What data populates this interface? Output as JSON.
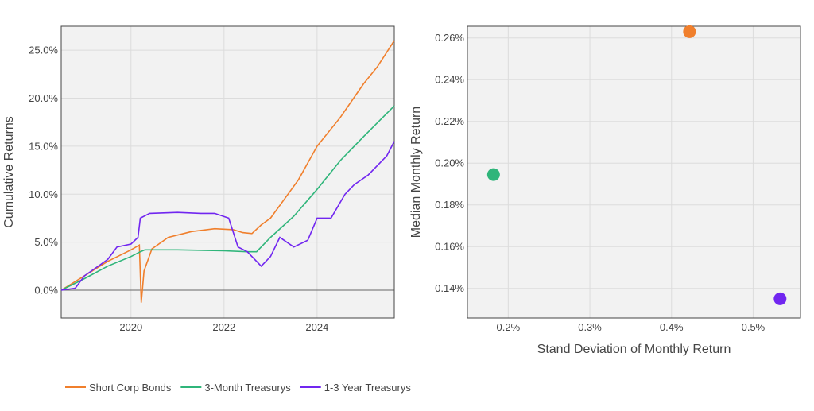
{
  "colors": {
    "short_corp": "#f07f2c",
    "three_month": "#2fb57a",
    "one_three_year": "#7126f0",
    "plot_bg": "#f2f2f2",
    "grid": "#dcdcdc"
  },
  "chart_data": [
    {
      "type": "line",
      "title": "",
      "xlabel": "",
      "ylabel": "Cumulative Returns",
      "xlim": [
        2018.5,
        2025.66
      ],
      "ylim": [
        -2.9,
        27.5
      ],
      "x_ticks": [
        {
          "v": 2020,
          "label": "2020"
        },
        {
          "v": 2022,
          "label": "2022"
        },
        {
          "v": 2024,
          "label": "2024"
        }
      ],
      "y_ticks": [
        {
          "v": 0,
          "label": "0.0%"
        },
        {
          "v": 5,
          "label": "5.0%"
        },
        {
          "v": 10,
          "label": "10.0%"
        },
        {
          "v": 15,
          "label": "15.0%"
        },
        {
          "v": 20,
          "label": "20.0%"
        },
        {
          "v": 25,
          "label": "25.0%"
        }
      ],
      "series": [
        {
          "name": "Short Corp Bonds",
          "color": "#f07f2c",
          "points": [
            [
              2018.5,
              0
            ],
            [
              2019,
              1.5
            ],
            [
              2019.5,
              3
            ],
            [
              2020.0,
              4.2
            ],
            [
              2020.18,
              4.7
            ],
            [
              2020.22,
              -1.3
            ],
            [
              2020.28,
              2
            ],
            [
              2020.45,
              4.3
            ],
            [
              2020.8,
              5.5
            ],
            [
              2021.3,
              6.1
            ],
            [
              2021.8,
              6.4
            ],
            [
              2022.2,
              6.3
            ],
            [
              2022.4,
              6.0
            ],
            [
              2022.6,
              5.9
            ],
            [
              2022.8,
              6.8
            ],
            [
              2023.0,
              7.5
            ],
            [
              2023.3,
              9.5
            ],
            [
              2023.6,
              11.5
            ],
            [
              2024.0,
              15
            ],
            [
              2024.5,
              18
            ],
            [
              2025.0,
              21.5
            ],
            [
              2025.3,
              23.3
            ],
            [
              2025.66,
              26
            ]
          ]
        },
        {
          "name": "3-Month Treasurys",
          "color": "#2fb57a",
          "points": [
            [
              2018.5,
              0
            ],
            [
              2019,
              1.2
            ],
            [
              2019.5,
              2.5
            ],
            [
              2020.0,
              3.5
            ],
            [
              2020.2,
              4.0
            ],
            [
              2020.3,
              4.2
            ],
            [
              2021,
              4.2
            ],
            [
              2022,
              4.1
            ],
            [
              2022.5,
              4.0
            ],
            [
              2022.7,
              4.0
            ],
            [
              2023.0,
              5.5
            ],
            [
              2023.5,
              7.7
            ],
            [
              2024,
              10.5
            ],
            [
              2024.5,
              13.5
            ],
            [
              2025,
              16
            ],
            [
              2025.66,
              19.2
            ]
          ]
        },
        {
          "name": "1-3 Year Treasurys",
          "color": "#7126f0",
          "points": [
            [
              2018.5,
              0
            ],
            [
              2018.8,
              0.2
            ],
            [
              2019,
              1.5
            ],
            [
              2019.5,
              3.2
            ],
            [
              2019.7,
              4.5
            ],
            [
              2020.0,
              4.8
            ],
            [
              2020.15,
              5.5
            ],
            [
              2020.2,
              7.5
            ],
            [
              2020.4,
              8
            ],
            [
              2021,
              8.1
            ],
            [
              2021.5,
              8
            ],
            [
              2021.8,
              8
            ],
            [
              2022.1,
              7.5
            ],
            [
              2022.3,
              4.5
            ],
            [
              2022.5,
              4.0
            ],
            [
              2022.6,
              3.5
            ],
            [
              2022.8,
              2.5
            ],
            [
              2023.0,
              3.5
            ],
            [
              2023.2,
              5.5
            ],
            [
              2023.5,
              4.5
            ],
            [
              2023.8,
              5.2
            ],
            [
              2024.0,
              7.5
            ],
            [
              2024.3,
              7.5
            ],
            [
              2024.6,
              10
            ],
            [
              2024.8,
              11
            ],
            [
              2025.1,
              12
            ],
            [
              2025.5,
              14
            ],
            [
              2025.66,
              15.5
            ]
          ]
        }
      ],
      "legend": {
        "placement": "bottom",
        "entries": [
          "Short Corp Bonds",
          "3-Month Treasurys",
          "1-3 Year Treasurys"
        ]
      }
    },
    {
      "type": "scatter",
      "xlabel": "Stand Deviation of Monthly Return",
      "ylabel": "Median Monthly Return",
      "xlim": [
        0.15,
        0.558
      ],
      "ylim": [
        0.1258,
        0.2656
      ],
      "x_ticks": [
        {
          "v": 0.2,
          "label": "0.2%"
        },
        {
          "v": 0.3,
          "label": "0.3%"
        },
        {
          "v": 0.4,
          "label": "0.4%"
        },
        {
          "v": 0.5,
          "label": "0.5%"
        }
      ],
      "y_ticks": [
        {
          "v": 0.14,
          "label": "0.14%"
        },
        {
          "v": 0.16,
          "label": "0.16%"
        },
        {
          "v": 0.18,
          "label": "0.18%"
        },
        {
          "v": 0.2,
          "label": "0.20%"
        },
        {
          "v": 0.22,
          "label": "0.22%"
        },
        {
          "v": 0.24,
          "label": "0.24%"
        },
        {
          "v": 0.26,
          "label": "0.26%"
        }
      ],
      "points": [
        {
          "name": "Short Corp Bonds",
          "x": 0.422,
          "y": 0.263,
          "color": "#f07f2c"
        },
        {
          "name": "3-Month Treasurys",
          "x": 0.182,
          "y": 0.1945,
          "color": "#2fb57a"
        },
        {
          "name": "1-3 Year Treasurys",
          "x": 0.533,
          "y": 0.135,
          "color": "#7126f0"
        }
      ]
    }
  ]
}
